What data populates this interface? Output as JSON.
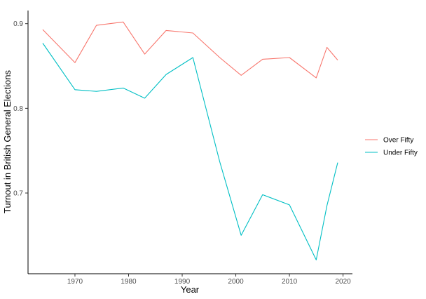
{
  "chart_data": {
    "type": "line",
    "xlabel": "Year",
    "ylabel": "Turnout in British General Elections",
    "xlim": [
      1961.25,
      2021.75
    ],
    "ylim": [
      0.6047,
      0.9155
    ],
    "x_ticks": [
      1970,
      1980,
      1990,
      2000,
      2010,
      2020
    ],
    "y_ticks": [
      0.7,
      0.8,
      0.9
    ],
    "y_tick_labels": [
      "0.7",
      "0.8",
      "0.9"
    ],
    "grid": false,
    "legend_position": "right",
    "x": [
      1964,
      1970,
      1974,
      1979,
      1983,
      1987,
      1992,
      1997,
      2001,
      2005,
      2010,
      2015,
      2017,
      2019
    ],
    "series": [
      {
        "name": "Over Fifty",
        "color": "#F8766D",
        "values": [
          0.893,
          0.854,
          0.898,
          0.902,
          0.864,
          0.892,
          0.889,
          0.86,
          0.839,
          0.858,
          0.86,
          0.836,
          0.872,
          0.857
        ]
      },
      {
        "name": "Under Fifty",
        "color": "#00BFC4",
        "values": [
          0.877,
          0.822,
          0.82,
          0.824,
          0.812,
          0.84,
          0.86,
          0.737,
          0.65,
          0.698,
          0.686,
          0.621,
          0.685,
          0.736
        ]
      }
    ]
  }
}
